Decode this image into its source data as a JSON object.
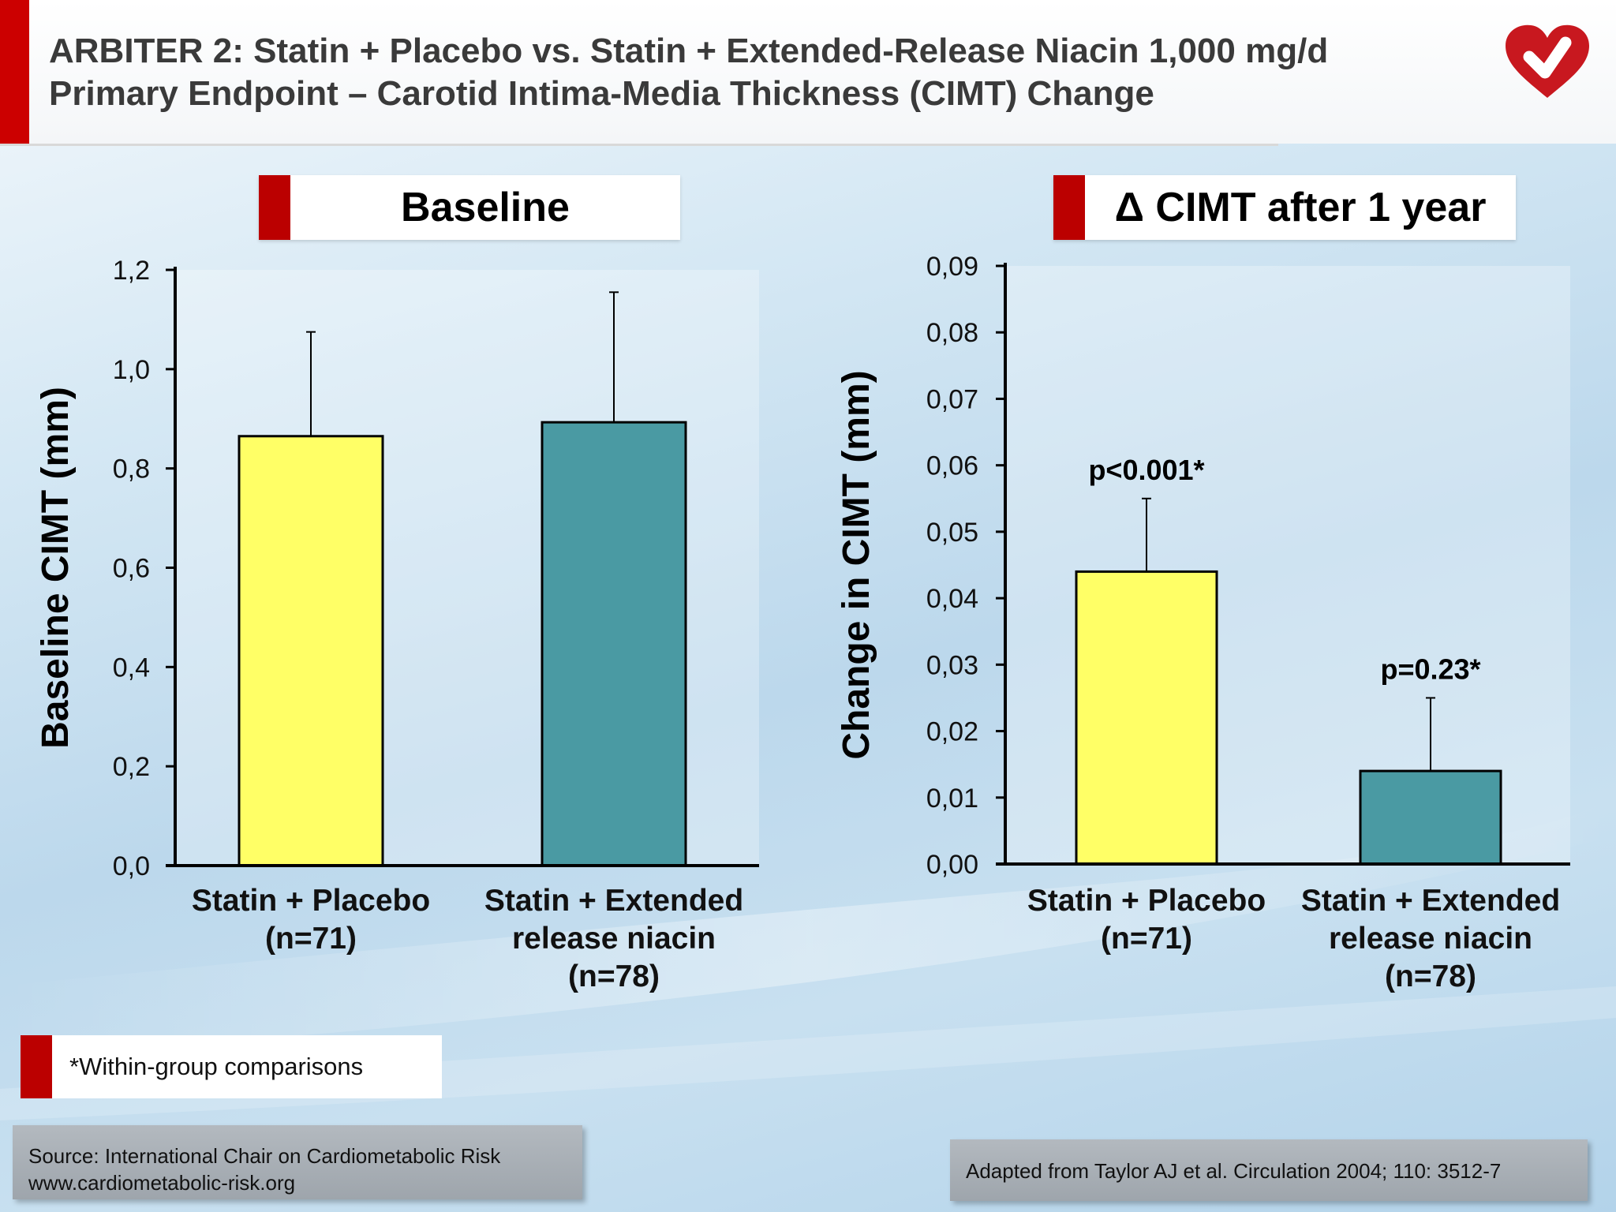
{
  "header": {
    "title_line1": "ARBITER 2: Statin + Placebo vs. Statin + Extended-Release Niacin 1,000 mg/d",
    "title_line2": "Primary Endpoint – Carotid Intima-Media Thickness (CIMT) Change",
    "accent_color": "#cc0000",
    "logo_icon": "heart-check-icon"
  },
  "panels": {
    "left_label": "Baseline",
    "right_label": "Δ CIMT after 1 year"
  },
  "chart_data": [
    {
      "type": "bar",
      "ylabel": "Baseline CIMT (mm)",
      "ylim": [
        0,
        1.2
      ],
      "yticks": [
        "0,0",
        "0,2",
        "0,4",
        "0,6",
        "0,8",
        "1,0",
        "1,2"
      ],
      "categories": [
        [
          "Statin + Placebo",
          "(n=71)"
        ],
        [
          "Statin + Extended",
          "release niacin",
          "(n=78)"
        ]
      ],
      "values": [
        0.865,
        0.893
      ],
      "error_upper": [
        1.075,
        1.155
      ],
      "colors": [
        "#ffff66",
        "#4a9aa3"
      ],
      "annotations": [
        "",
        ""
      ],
      "grid": false
    },
    {
      "type": "bar",
      "ylabel": "Change in CIMT (mm)",
      "ylim": [
        0,
        0.09
      ],
      "yticks": [
        "0,00",
        "0,01",
        "0,02",
        "0,03",
        "0,04",
        "0,05",
        "0,06",
        "0,07",
        "0,08",
        "0,09"
      ],
      "categories": [
        [
          "Statin + Placebo",
          "(n=71)"
        ],
        [
          "Statin + Extended",
          "release niacin",
          "(n=78)"
        ]
      ],
      "values": [
        0.044,
        0.014
      ],
      "error_upper": [
        0.055,
        0.025
      ],
      "colors": [
        "#ffff66",
        "#4a9aa3"
      ],
      "annotations": [
        "p<0.001*",
        "p=0.23*"
      ],
      "grid": false
    }
  ],
  "footnote": "*Within-group comparisons",
  "source": {
    "line1": "Source: International Chair on Cardiometabolic Risk",
    "line2": "www.cardiometabolic-risk.org"
  },
  "reference": "Adapted from Taylor AJ et al. Circulation 2004; 110: 3512-7"
}
